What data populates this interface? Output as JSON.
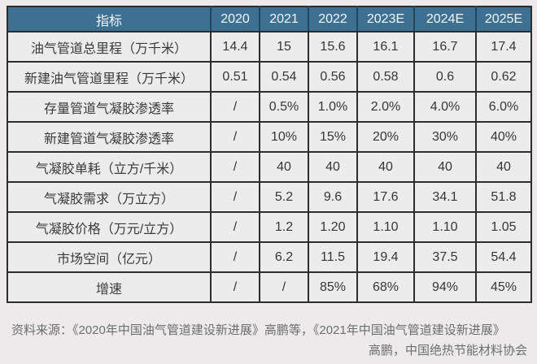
{
  "chart_data": {
    "type": "table",
    "title": "",
    "columns": [
      "指标",
      "2020",
      "2021",
      "2022",
      "2023E",
      "2024E",
      "2025E"
    ],
    "rows": [
      {
        "label": "油气管道总里程（万千米）",
        "values": [
          "14.4",
          "15",
          "15.6",
          "16.1",
          "16.7",
          "17.4"
        ]
      },
      {
        "label": "新建油气管道里程（万千米）",
        "values": [
          "0.51",
          "0.54",
          "0.56",
          "0.58",
          "0.6",
          "0.62"
        ]
      },
      {
        "label": "存量管道气凝胶渗透率",
        "values": [
          "/",
          "0.5%",
          "1.0%",
          "2.0%",
          "4.0%",
          "6.0%"
        ]
      },
      {
        "label": "新建管道气凝胶渗透率",
        "values": [
          "/",
          "10%",
          "15%",
          "20%",
          "30%",
          "40%"
        ]
      },
      {
        "label": "气凝胶单耗（立方/千米）",
        "values": [
          "/",
          "40",
          "40",
          "40",
          "40",
          "40"
        ]
      },
      {
        "label": "气凝胶需求（万立方）",
        "values": [
          "/",
          "5.2",
          "9.6",
          "17.6",
          "34.1",
          "51.8"
        ]
      },
      {
        "label": "气凝胶价格（万元/立方）",
        "values": [
          "/",
          "1.2",
          "1.20",
          "1.10",
          "1.10",
          "1.05"
        ]
      },
      {
        "label": "市场空间（亿元）",
        "values": [
          "/",
          "6.2",
          "11.5",
          "19.4",
          "37.5",
          "54.4"
        ]
      },
      {
        "label": "增速",
        "values": [
          "/",
          "/",
          "85%",
          "68%",
          "94%",
          "45%"
        ]
      }
    ]
  },
  "footer": {
    "line1": "资料来源：《2020年中国油气管道建设新进展》高鹏等，《2021年中国油气管道建设新进展》",
    "line2": "高鹏，中国绝热节能材料协会"
  },
  "colors": {
    "page_background": "#ECEAEB",
    "header_background": "#3E7191",
    "header_text": "#F3F7F9",
    "cell_background": "#ECECEC",
    "cell_text": "#363636",
    "border": "#2D2D2D",
    "footer_text": "#6E6E6E"
  }
}
